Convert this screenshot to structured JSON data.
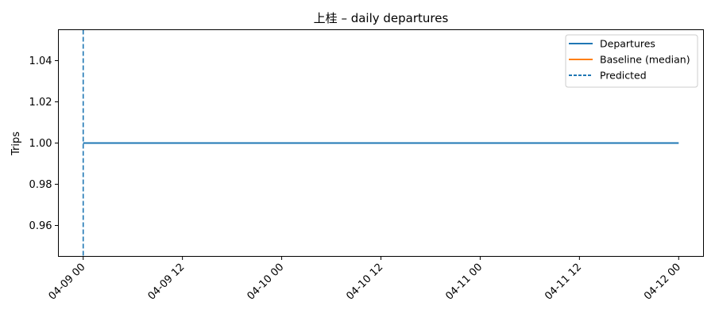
{
  "chart_data": {
    "type": "line",
    "title": "上桂 – daily departures",
    "xlabel": "",
    "ylabel": "Trips",
    "xlim": [
      "2024-04-08T21:00",
      "2024-04-12T03:00"
    ],
    "ylim": [
      0.945,
      1.055
    ],
    "x_ticks": [
      "2024-04-09T00:00",
      "2024-04-09T12:00",
      "2024-04-10T00:00",
      "2024-04-10T12:00",
      "2024-04-11T00:00",
      "2024-04-11T12:00",
      "2024-04-12T00:00"
    ],
    "x_tick_labels": [
      "04-09 00",
      "04-09 12",
      "04-10 00",
      "04-10 12",
      "04-11 00",
      "04-11 12",
      "04-12 00"
    ],
    "y_ticks": [
      0.96,
      0.98,
      1.0,
      1.02,
      1.04
    ],
    "y_tick_labels": [
      "0.96",
      "0.98",
      "1.00",
      "1.02",
      "1.04"
    ],
    "grid": false,
    "legend_position": "top-right",
    "series": [
      {
        "name": "Departures",
        "color": "#1f77b4",
        "style": "solid",
        "x": [
          "2024-04-09T00:00",
          "2024-04-12T00:00"
        ],
        "y": [
          1,
          1
        ]
      },
      {
        "name": "Baseline (median)",
        "color": "#ff7f0e",
        "style": "solid",
        "x": [],
        "y": []
      }
    ],
    "vlines": [
      {
        "name": "Predicted",
        "color": "#1f77b4",
        "style": "dashed",
        "x": "2024-04-09T00:00"
      }
    ]
  }
}
